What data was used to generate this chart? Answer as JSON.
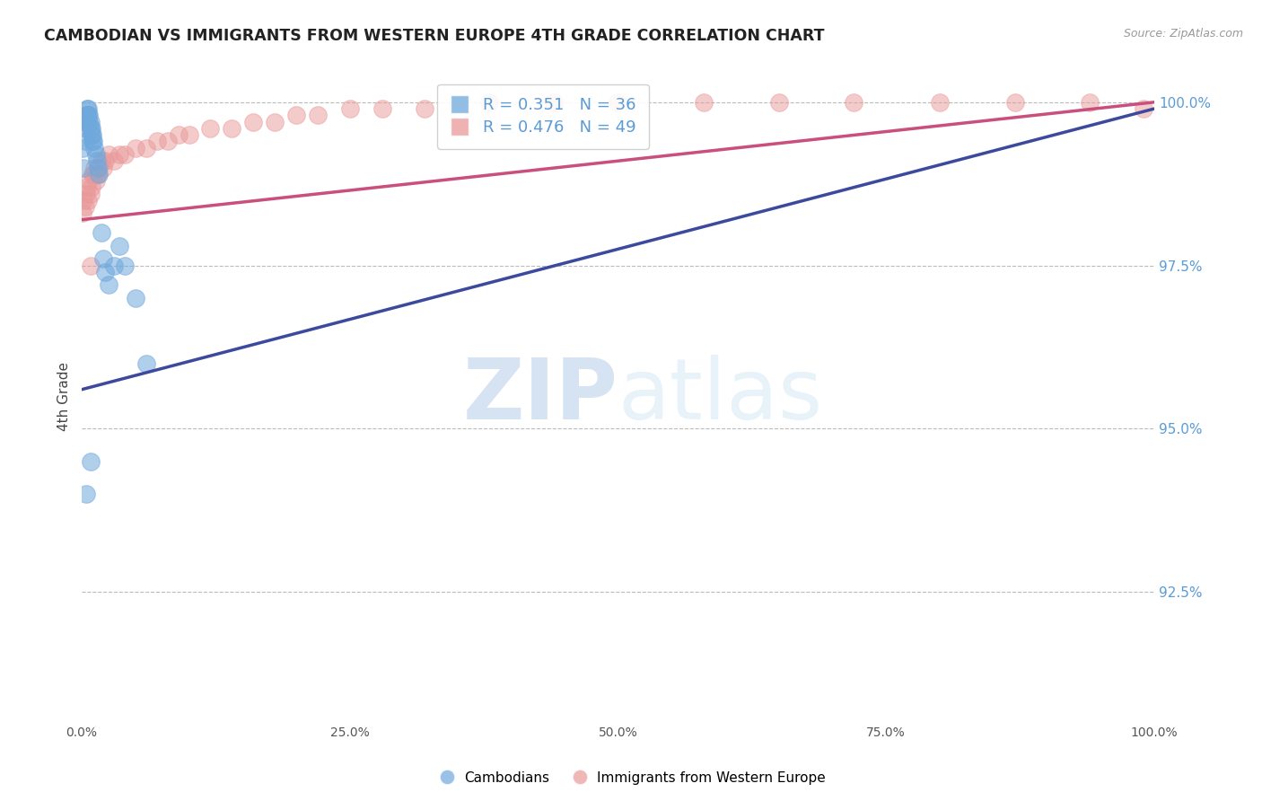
{
  "title": "CAMBODIAN VS IMMIGRANTS FROM WESTERN EUROPE 4TH GRADE CORRELATION CHART",
  "source": "Source: ZipAtlas.com",
  "ylabel": "4th Grade",
  "xlabel": "",
  "blue_R": 0.351,
  "blue_N": 36,
  "pink_R": 0.476,
  "pink_N": 49,
  "blue_color": "#6fa8dc",
  "pink_color": "#ea9999",
  "blue_line_color": "#3c4a9e",
  "pink_line_color": "#c94f7c",
  "watermark_zip": "ZIP",
  "watermark_atlas": "atlas",
  "xlim": [
    0.0,
    1.0
  ],
  "ylim": [
    0.905,
    1.005
  ],
  "yticks": [
    0.925,
    0.95,
    0.975,
    1.0
  ],
  "xticks": [
    0.0,
    0.25,
    0.5,
    0.75,
    1.0
  ],
  "blue_x": [
    0.001,
    0.002,
    0.003,
    0.003,
    0.004,
    0.004,
    0.005,
    0.005,
    0.005,
    0.006,
    0.006,
    0.007,
    0.007,
    0.008,
    0.008,
    0.009,
    0.009,
    0.01,
    0.01,
    0.011,
    0.012,
    0.013,
    0.014,
    0.015,
    0.016,
    0.018,
    0.02,
    0.022,
    0.025,
    0.03,
    0.035,
    0.04,
    0.05,
    0.06,
    0.008,
    0.004
  ],
  "blue_y": [
    0.993,
    0.99,
    0.997,
    0.994,
    0.998,
    0.996,
    0.999,
    0.998,
    0.997,
    0.999,
    0.998,
    0.998,
    0.997,
    0.997,
    0.996,
    0.996,
    0.995,
    0.995,
    0.994,
    0.994,
    0.993,
    0.992,
    0.991,
    0.99,
    0.989,
    0.98,
    0.976,
    0.974,
    0.972,
    0.975,
    0.978,
    0.975,
    0.97,
    0.96,
    0.945,
    0.94
  ],
  "pink_x": [
    0.001,
    0.002,
    0.003,
    0.004,
    0.005,
    0.006,
    0.007,
    0.008,
    0.009,
    0.01,
    0.011,
    0.012,
    0.013,
    0.014,
    0.015,
    0.016,
    0.018,
    0.02,
    0.022,
    0.025,
    0.03,
    0.035,
    0.04,
    0.05,
    0.06,
    0.07,
    0.08,
    0.09,
    0.1,
    0.12,
    0.14,
    0.16,
    0.18,
    0.2,
    0.22,
    0.25,
    0.28,
    0.32,
    0.38,
    0.44,
    0.5,
    0.58,
    0.65,
    0.72,
    0.8,
    0.87,
    0.94,
    0.99,
    0.008
  ],
  "pink_y": [
    0.983,
    0.985,
    0.984,
    0.986,
    0.987,
    0.985,
    0.988,
    0.986,
    0.987,
    0.989,
    0.989,
    0.99,
    0.988,
    0.989,
    0.989,
    0.99,
    0.991,
    0.99,
    0.991,
    0.992,
    0.991,
    0.992,
    0.992,
    0.993,
    0.993,
    0.994,
    0.994,
    0.995,
    0.995,
    0.996,
    0.996,
    0.997,
    0.997,
    0.998,
    0.998,
    0.999,
    0.999,
    0.999,
    1.0,
    1.0,
    1.0,
    1.0,
    1.0,
    1.0,
    1.0,
    1.0,
    1.0,
    0.999,
    0.975
  ],
  "blue_line_x": [
    0.0,
    1.0
  ],
  "blue_line_y": [
    0.956,
    0.999
  ],
  "pink_line_x": [
    0.0,
    1.0
  ],
  "pink_line_y": [
    0.982,
    1.0
  ]
}
